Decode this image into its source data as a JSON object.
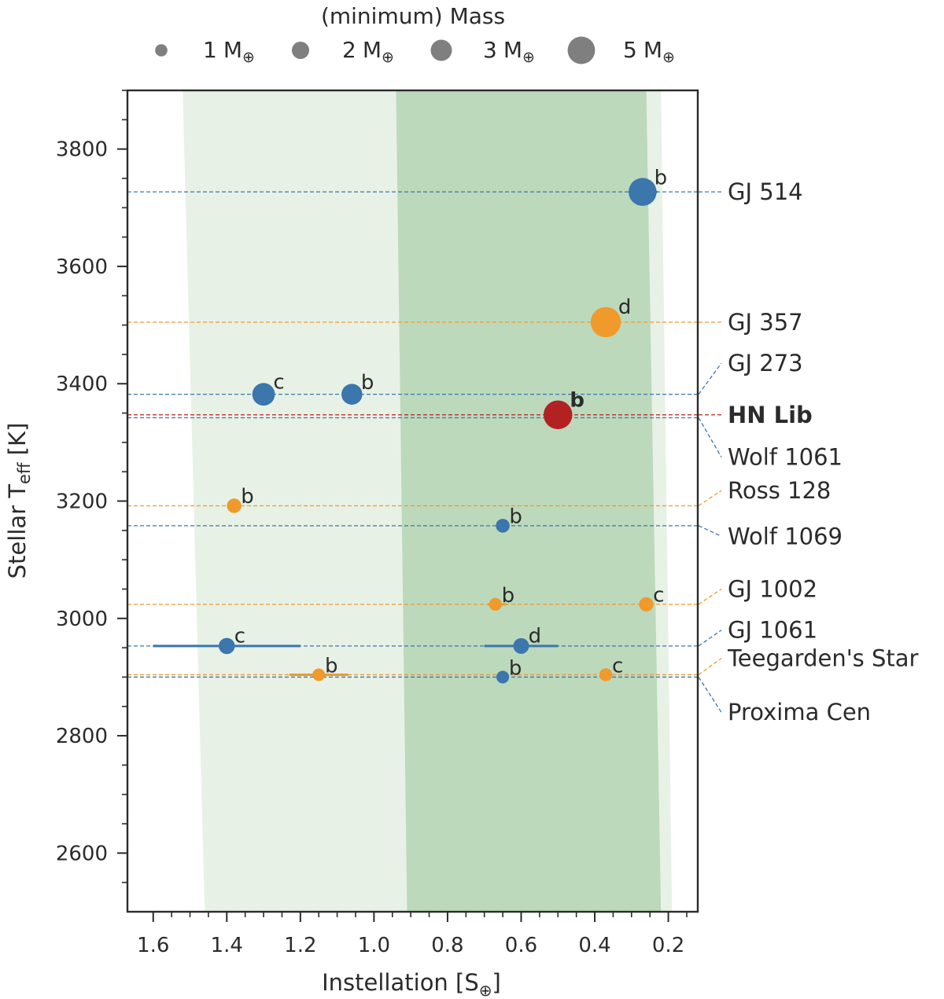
{
  "chart_data": {
    "type": "scatter",
    "title": "",
    "xlabel_main": "Instellation [S",
    "xlabel_sub": "⊕",
    "xlabel_close": "]",
    "ylabel_main": "Stellar T",
    "ylabel_sub": "eff",
    "ylabel_unit": " [K]",
    "xlim": [
      1.67,
      0.12
    ],
    "ylim": [
      2500,
      3900
    ],
    "xticks": [
      1.6,
      1.4,
      1.2,
      1.0,
      0.8,
      0.6,
      0.4,
      0.2
    ],
    "xtick_labels": [
      "1.6",
      "1.4",
      "1.2",
      "1.0",
      "0.8",
      "0.6",
      "0.4",
      "0.2"
    ],
    "yticks": [
      2600,
      2800,
      3000,
      3200,
      3400,
      3600,
      3800
    ],
    "ytick_labels": [
      "2600",
      "2800",
      "3000",
      "3200",
      "3400",
      "3600",
      "3800"
    ],
    "colors": {
      "blue": "#3b76ad",
      "orange": "#ef9a2b",
      "red": "#b22222",
      "hz_conservative": "#bcd9bc",
      "hz_optimistic": "#e8f1e6",
      "text": "#2b2b2b",
      "legend_marker": "#7f7f7f"
    },
    "habitable_zone": {
      "optimistic": {
        "t_low": 2500,
        "t_high": 3900,
        "inner": [
          1.46,
          1.52
        ],
        "outer": [
          0.19,
          0.22
        ]
      },
      "conservative": {
        "t_low": 2500,
        "t_high": 3900,
        "inner": [
          0.91,
          0.94
        ],
        "outer": [
          0.22,
          0.26
        ]
      }
    },
    "legend": {
      "title": "(minimum) Mass",
      "unit": "M",
      "unit_sub": "⊕",
      "entries": [
        {
          "label": "1",
          "mass": 1
        },
        {
          "label": "2",
          "mass": 2
        },
        {
          "label": "3",
          "mass": 3
        },
        {
          "label": "5",
          "mass": 5
        }
      ]
    },
    "systems": [
      {
        "name": "GJ 514",
        "teff": 3727,
        "color": "blue",
        "bold": false,
        "label_teff": 3727,
        "planets": [
          {
            "letter": "b",
            "s": 0.27,
            "mass": 5.2,
            "s_err": [
              0.3,
              0.23
            ]
          }
        ]
      },
      {
        "name": "GJ 357",
        "teff": 3505,
        "color": "orange",
        "bold": false,
        "label_teff": 3505,
        "planets": [
          {
            "letter": "d",
            "s": 0.37,
            "mass": 6.1
          }
        ]
      },
      {
        "name": "GJ 273",
        "teff": 3382,
        "color": "blue",
        "bold": false,
        "label_teff": 3435,
        "planets": [
          {
            "letter": "b",
            "s": 1.06,
            "mass": 2.9
          },
          {
            "letter": "c",
            "s": 1.3,
            "mass": 3.4
          }
        ]
      },
      {
        "name": "HN Lib",
        "teff": 3347,
        "color": "red",
        "bold": true,
        "label_teff": 3347,
        "planets": [
          {
            "letter": "b",
            "s": 0.5,
            "mass": 5.5
          }
        ]
      },
      {
        "name": "Wolf 1061",
        "teff": 3342,
        "color": "blue",
        "bold": false,
        "label_teff": 3275,
        "planets": []
      },
      {
        "name": "Ross 128",
        "teff": 3192,
        "color": "orange",
        "bold": false,
        "label_teff": 3218,
        "planets": [
          {
            "letter": "b",
            "s": 1.38,
            "mass": 1.4
          }
        ]
      },
      {
        "name": "Wolf 1069",
        "teff": 3158,
        "color": "blue",
        "bold": false,
        "label_teff": 3140,
        "planets": [
          {
            "letter": "b",
            "s": 0.65,
            "mass": 1.26
          }
        ]
      },
      {
        "name": "GJ 1002",
        "teff": 3024,
        "color": "orange",
        "bold": false,
        "label_teff": 3050,
        "planets": [
          {
            "letter": "b",
            "s": 0.67,
            "mass": 1.08,
            "s_err": [
              0.69,
              0.64
            ]
          },
          {
            "letter": "c",
            "s": 0.26,
            "mass": 1.36
          }
        ]
      },
      {
        "name": "GJ 1061",
        "teff": 2953,
        "color": "blue",
        "bold": false,
        "label_teff": 2980,
        "planets": [
          {
            "letter": "c",
            "s": 1.4,
            "mass": 1.74,
            "s_err": [
              1.6,
              1.2
            ]
          },
          {
            "letter": "d",
            "s": 0.6,
            "mass": 1.64,
            "s_err": [
              0.7,
              0.5
            ]
          }
        ]
      },
      {
        "name": "Teegarden's Star",
        "teff": 2904,
        "color": "orange",
        "bold": false,
        "label_teff": 2932,
        "planets": [
          {
            "letter": "b",
            "s": 1.15,
            "mass": 1.05,
            "s_err": [
              1.23,
              1.07
            ]
          },
          {
            "letter": "c",
            "s": 0.37,
            "mass": 1.11
          }
        ]
      },
      {
        "name": "Proxima Cen",
        "teff": 2900,
        "color": "blue",
        "bold": false,
        "label_teff": 2840,
        "planets": [
          {
            "letter": "b",
            "s": 0.65,
            "mass": 1.07
          }
        ]
      }
    ]
  }
}
